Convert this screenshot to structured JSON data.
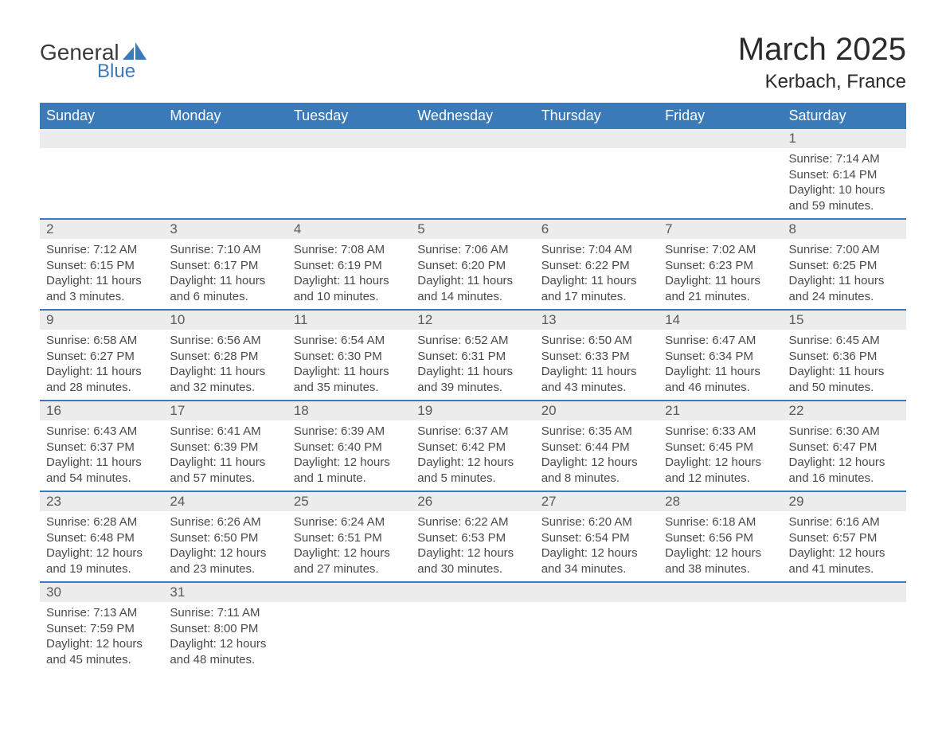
{
  "logo": {
    "text1": "General",
    "text2": "Blue",
    "icon_color": "#3a7ab8"
  },
  "title": "March 2025",
  "location": "Kerbach, France",
  "header_bg": "#3a7ab8",
  "header_fg": "#ffffff",
  "daynum_bg": "#ececec",
  "row_border": "#3a7ab8",
  "weekdays": [
    "Sunday",
    "Monday",
    "Tuesday",
    "Wednesday",
    "Thursday",
    "Friday",
    "Saturday"
  ],
  "weeks": [
    [
      null,
      null,
      null,
      null,
      null,
      null,
      {
        "n": "1",
        "sunrise": "7:14 AM",
        "sunset": "6:14 PM",
        "daylight": "10 hours and 59 minutes."
      }
    ],
    [
      {
        "n": "2",
        "sunrise": "7:12 AM",
        "sunset": "6:15 PM",
        "daylight": "11 hours and 3 minutes."
      },
      {
        "n": "3",
        "sunrise": "7:10 AM",
        "sunset": "6:17 PM",
        "daylight": "11 hours and 6 minutes."
      },
      {
        "n": "4",
        "sunrise": "7:08 AM",
        "sunset": "6:19 PM",
        "daylight": "11 hours and 10 minutes."
      },
      {
        "n": "5",
        "sunrise": "7:06 AM",
        "sunset": "6:20 PM",
        "daylight": "11 hours and 14 minutes."
      },
      {
        "n": "6",
        "sunrise": "7:04 AM",
        "sunset": "6:22 PM",
        "daylight": "11 hours and 17 minutes."
      },
      {
        "n": "7",
        "sunrise": "7:02 AM",
        "sunset": "6:23 PM",
        "daylight": "11 hours and 21 minutes."
      },
      {
        "n": "8",
        "sunrise": "7:00 AM",
        "sunset": "6:25 PM",
        "daylight": "11 hours and 24 minutes."
      }
    ],
    [
      {
        "n": "9",
        "sunrise": "6:58 AM",
        "sunset": "6:27 PM",
        "daylight": "11 hours and 28 minutes."
      },
      {
        "n": "10",
        "sunrise": "6:56 AM",
        "sunset": "6:28 PM",
        "daylight": "11 hours and 32 minutes."
      },
      {
        "n": "11",
        "sunrise": "6:54 AM",
        "sunset": "6:30 PM",
        "daylight": "11 hours and 35 minutes."
      },
      {
        "n": "12",
        "sunrise": "6:52 AM",
        "sunset": "6:31 PM",
        "daylight": "11 hours and 39 minutes."
      },
      {
        "n": "13",
        "sunrise": "6:50 AM",
        "sunset": "6:33 PM",
        "daylight": "11 hours and 43 minutes."
      },
      {
        "n": "14",
        "sunrise": "6:47 AM",
        "sunset": "6:34 PM",
        "daylight": "11 hours and 46 minutes."
      },
      {
        "n": "15",
        "sunrise": "6:45 AM",
        "sunset": "6:36 PM",
        "daylight": "11 hours and 50 minutes."
      }
    ],
    [
      {
        "n": "16",
        "sunrise": "6:43 AM",
        "sunset": "6:37 PM",
        "daylight": "11 hours and 54 minutes."
      },
      {
        "n": "17",
        "sunrise": "6:41 AM",
        "sunset": "6:39 PM",
        "daylight": "11 hours and 57 minutes."
      },
      {
        "n": "18",
        "sunrise": "6:39 AM",
        "sunset": "6:40 PM",
        "daylight": "12 hours and 1 minute."
      },
      {
        "n": "19",
        "sunrise": "6:37 AM",
        "sunset": "6:42 PM",
        "daylight": "12 hours and 5 minutes."
      },
      {
        "n": "20",
        "sunrise": "6:35 AM",
        "sunset": "6:44 PM",
        "daylight": "12 hours and 8 minutes."
      },
      {
        "n": "21",
        "sunrise": "6:33 AM",
        "sunset": "6:45 PM",
        "daylight": "12 hours and 12 minutes."
      },
      {
        "n": "22",
        "sunrise": "6:30 AM",
        "sunset": "6:47 PM",
        "daylight": "12 hours and 16 minutes."
      }
    ],
    [
      {
        "n": "23",
        "sunrise": "6:28 AM",
        "sunset": "6:48 PM",
        "daylight": "12 hours and 19 minutes."
      },
      {
        "n": "24",
        "sunrise": "6:26 AM",
        "sunset": "6:50 PM",
        "daylight": "12 hours and 23 minutes."
      },
      {
        "n": "25",
        "sunrise": "6:24 AM",
        "sunset": "6:51 PM",
        "daylight": "12 hours and 27 minutes."
      },
      {
        "n": "26",
        "sunrise": "6:22 AM",
        "sunset": "6:53 PM",
        "daylight": "12 hours and 30 minutes."
      },
      {
        "n": "27",
        "sunrise": "6:20 AM",
        "sunset": "6:54 PM",
        "daylight": "12 hours and 34 minutes."
      },
      {
        "n": "28",
        "sunrise": "6:18 AM",
        "sunset": "6:56 PM",
        "daylight": "12 hours and 38 minutes."
      },
      {
        "n": "29",
        "sunrise": "6:16 AM",
        "sunset": "6:57 PM",
        "daylight": "12 hours and 41 minutes."
      }
    ],
    [
      {
        "n": "30",
        "sunrise": "7:13 AM",
        "sunset": "7:59 PM",
        "daylight": "12 hours and 45 minutes."
      },
      {
        "n": "31",
        "sunrise": "7:11 AM",
        "sunset": "8:00 PM",
        "daylight": "12 hours and 48 minutes."
      },
      null,
      null,
      null,
      null,
      null
    ]
  ],
  "labels": {
    "sunrise": "Sunrise: ",
    "sunset": "Sunset: ",
    "daylight": "Daylight: "
  }
}
